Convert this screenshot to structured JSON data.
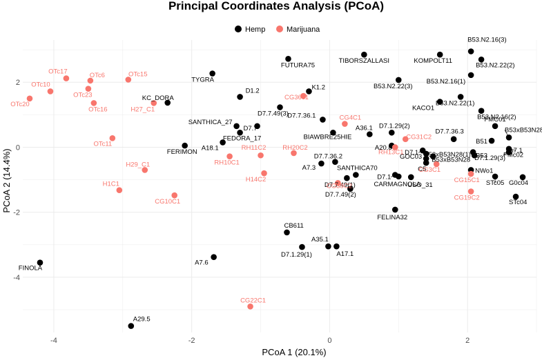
{
  "chart_data": {
    "type": "scatter",
    "title": "Principal Coordinates Analysis (PCoA)",
    "xlabel": "PCoA 1 (20.1%)",
    "ylabel": "PCoA 2 (14.4%)",
    "xlim": [
      -4.45,
      3.0
    ],
    "ylim": [
      -5.7,
      3.3
    ],
    "x_ticks": [
      -4,
      -2,
      0,
      2
    ],
    "y_ticks": [
      -4,
      -2,
      0,
      2
    ],
    "grid": true,
    "legend_position": "top",
    "series": [
      {
        "name": "Hemp",
        "color": "#000000",
        "points": [
          {
            "label": "FUTURA75",
            "x": -0.6,
            "y": 2.72
          },
          {
            "label": "TIBORSZALLASI",
            "x": 0.5,
            "y": 2.85
          },
          {
            "label": "KOMPOLT11",
            "x": 1.6,
            "y": 2.85
          },
          {
            "label": "B53.N2.16(3)",
            "x": 2.05,
            "y": 2.95
          },
          {
            "label": "B53.N2.22(2)",
            "x": 2.2,
            "y": 2.7
          },
          {
            "label": "TYGRA",
            "x": -1.7,
            "y": 2.27
          },
          {
            "label": "B53.N2.16(1)",
            "x": 2.05,
            "y": 2.22
          },
          {
            "label": "B53.N2.22(3)",
            "x": 1.0,
            "y": 2.07
          },
          {
            "label": "K1.2",
            "x": -0.3,
            "y": 1.72
          },
          {
            "label": "D1.2",
            "x": -1.3,
            "y": 1.55
          },
          {
            "label": "B53.N2.22(1)",
            "x": 1.9,
            "y": 1.55
          },
          {
            "label": "KC_DORA",
            "x": -2.35,
            "y": 1.37
          },
          {
            "label": "KACO1",
            "x": 1.6,
            "y": 1.4
          },
          {
            "label": "D7.7.49(3)",
            "x": -0.72,
            "y": 1.23
          },
          {
            "label": "B53.N2.16(2)",
            "x": 2.2,
            "y": 1.12
          },
          {
            "label": "D7.7.36.1",
            "x": -0.1,
            "y": 0.85
          },
          {
            "label": "SANTHICA_27",
            "x": -1.35,
            "y": 0.65
          },
          {
            "label": "D7.7",
            "x": -1.05,
            "y": 0.65
          },
          {
            "label": "FMC01",
            "x": 2.4,
            "y": 0.65
          },
          {
            "label": "FEDORA_17",
            "x": -1.3,
            "y": 0.45
          },
          {
            "label": "BIAWBRE25HIE",
            "x": 0.05,
            "y": 0.45
          },
          {
            "label": "A36.1",
            "x": 0.58,
            "y": 0.4
          },
          {
            "label": "D7.1.29(2)",
            "x": 0.9,
            "y": 0.45
          },
          {
            "label": "D7.7.36.3",
            "x": 1.8,
            "y": 0.25
          },
          {
            "label": "B51",
            "x": 2.35,
            "y": 0.2
          },
          {
            "label": "B53xB53N28(2)",
            "x": 2.6,
            "y": 0.3
          },
          {
            "label": "A18.1",
            "x": -1.55,
            "y": 0.15
          },
          {
            "label": "FERIMON",
            "x": -2.1,
            "y": 0.05
          },
          {
            "label": "A20.8",
            "x": 0.9,
            "y": 0.05
          },
          {
            "label": "D7.1",
            "x": 1.35,
            "y": -0.1
          },
          {
            "label": "B53xB53N28(1)",
            "x": 1.4,
            "y": -0.2
          },
          {
            "label": "B53",
            "x": 2.08,
            "y": -0.15
          },
          {
            "label": "A7.1",
            "x": 2.6,
            "y": -0.05
          },
          {
            "label": "GOC03",
            "x": 1.4,
            "y": -0.35
          },
          {
            "label": "B53xB53N28",
            "x": 1.5,
            "y": -0.28
          },
          {
            "label": "D7.1.29(3)",
            "x": 2.1,
            "y": -0.25
          },
          {
            "label": "FMc02",
            "x": 2.6,
            "y": -0.15
          },
          {
            "label": "C5",
            "x": 1.4,
            "y": -0.48
          },
          {
            "label": "D7.7.36.2",
            "x": 0.08,
            "y": -0.45
          },
          {
            "label": "A7.3",
            "x": -0.12,
            "y": -0.5
          },
          {
            "label": "SANTHICA70",
            "x": 0.38,
            "y": -0.85
          },
          {
            "label": "D7.1",
            "x": 0.95,
            "y": -0.85
          },
          {
            "label": "NWo1",
            "x": 2.05,
            "y": -0.7
          },
          {
            "label": "STc05",
            "x": 2.4,
            "y": -0.9
          },
          {
            "label": "G0c04",
            "x": 2.8,
            "y": -0.92
          },
          {
            "label": "USO_31",
            "x": 1.18,
            "y": -0.92
          },
          {
            "label": "D7.7.49(1)",
            "x": 0.25,
            "y": -0.95
          },
          {
            "label": "CARMAGNOLA",
            "x": 1.0,
            "y": -0.9
          },
          {
            "label": "D7.7.49(2)",
            "x": 0.3,
            "y": -1.28
          },
          {
            "label": "STc04",
            "x": 2.7,
            "y": -1.52
          },
          {
            "label": "FELINA32",
            "x": 0.95,
            "y": -1.92
          },
          {
            "label": "CB611",
            "x": -0.62,
            "y": -2.62
          },
          {
            "label": "D7.1.29(1)",
            "x": -0.4,
            "y": -3.07
          },
          {
            "label": "A35.1",
            "x": -0.02,
            "y": -3.05
          },
          {
            "label": "A17.1",
            "x": 0.1,
            "y": -3.05
          },
          {
            "label": "A7.6",
            "x": -1.68,
            "y": -3.38
          },
          {
            "label": "FINOLA",
            "x": -4.2,
            "y": -3.55
          },
          {
            "label": "A29.5",
            "x": -2.88,
            "y": -5.5
          }
        ]
      },
      {
        "name": "Marijuana",
        "color": "#f8766d",
        "points": [
          {
            "label": "OTc17",
            "x": -3.82,
            "y": 2.12
          },
          {
            "label": "OTc6",
            "x": -3.47,
            "y": 2.05
          },
          {
            "label": "OTc15",
            "x": -2.92,
            "y": 2.08
          },
          {
            "label": "OTc10",
            "x": -4.05,
            "y": 1.72
          },
          {
            "label": "OTc23",
            "x": -3.5,
            "y": 1.8
          },
          {
            "label": "OTc20",
            "x": -4.35,
            "y": 1.5
          },
          {
            "label": "OTc16",
            "x": -3.42,
            "y": 1.36
          },
          {
            "label": "H27_C1",
            "x": -2.55,
            "y": 1.36
          },
          {
            "label": "CG36c1",
            "x": -0.38,
            "y": 1.58
          },
          {
            "label": "OTc11",
            "x": -3.15,
            "y": 0.28
          },
          {
            "label": "CG4C1",
            "x": 0.22,
            "y": 0.72
          },
          {
            "label": "CG31C2",
            "x": 1.1,
            "y": 0.25
          },
          {
            "label": "RH13C1",
            "x": 0.95,
            "y": 0.0
          },
          {
            "label": "RH11C2",
            "x": -1.0,
            "y": -0.25
          },
          {
            "label": "RH20C2",
            "x": -0.52,
            "y": -0.18
          },
          {
            "label": "RH10C1",
            "x": -1.45,
            "y": -0.28
          },
          {
            "label": "CG3C1",
            "x": 1.55,
            "y": -0.52
          },
          {
            "label": "H29_C1",
            "x": -2.68,
            "y": -0.7
          },
          {
            "label": "H14C2",
            "x": -0.95,
            "y": -0.8
          },
          {
            "label": "CG38C2",
            "x": 0.12,
            "y": -1.1
          },
          {
            "label": "CG15C1",
            "x": 2.05,
            "y": -0.82
          },
          {
            "label": "H1C1",
            "x": -3.05,
            "y": -1.32
          },
          {
            "label": "CG10C1",
            "x": -2.25,
            "y": -1.48
          },
          {
            "label": "CG19C2",
            "x": 2.05,
            "y": -1.36
          },
          {
            "label": "CG22C1",
            "x": -1.15,
            "y": -4.9
          }
        ]
      }
    ]
  }
}
